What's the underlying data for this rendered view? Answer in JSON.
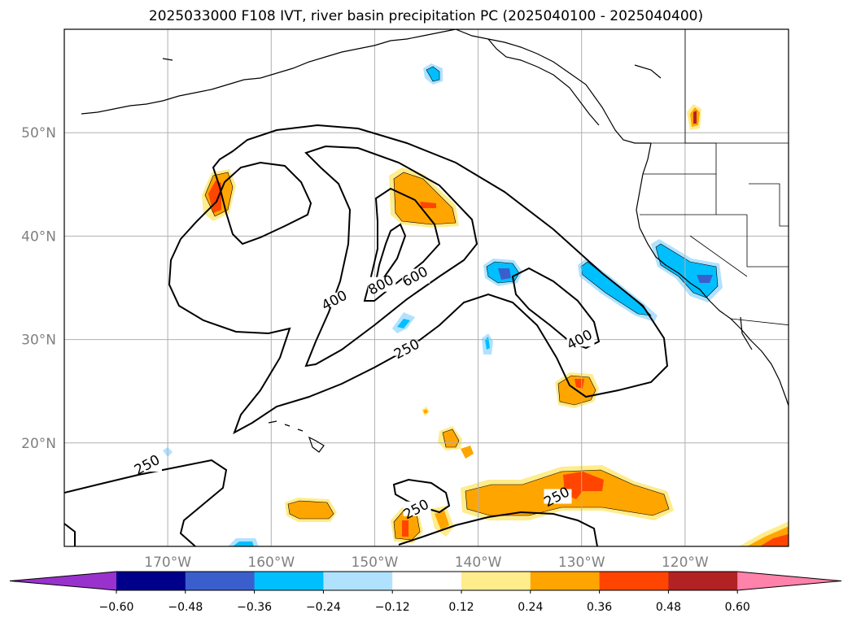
{
  "title": "2025033000 F108 IVT, river basin precipitation PC (2025040100 - 2025040400)",
  "map": {
    "lon_range": [
      -180,
      -110
    ],
    "lat_range": [
      10,
      60
    ],
    "lat_ticks": [
      {
        "value": 20,
        "label": "20°N"
      },
      {
        "value": 30,
        "label": "30°N"
      },
      {
        "value": 40,
        "label": "40°N"
      },
      {
        "value": 50,
        "label": "50°N"
      }
    ],
    "lon_ticks": [
      {
        "value": -170,
        "label": "170°W"
      },
      {
        "value": -160,
        "label": "160°W"
      },
      {
        "value": -150,
        "label": "150°W"
      },
      {
        "value": -140,
        "label": "140°W"
      },
      {
        "value": -130,
        "label": "130°W"
      },
      {
        "value": -120,
        "label": "120°W"
      }
    ],
    "grid": true,
    "ivt_contour_labels": [
      {
        "text": "400",
        "lon": -153.8,
        "lat": 33.6
      },
      {
        "text": "800",
        "lon": -149.3,
        "lat": 35.1
      },
      {
        "text": "600",
        "lon": -146.0,
        "lat": 35.9
      },
      {
        "text": "250",
        "lon": -146.8,
        "lat": 28.9
      },
      {
        "text": "400",
        "lon": -130.1,
        "lat": 29.8
      },
      {
        "text": "250",
        "lon": -171.9,
        "lat": 17.7
      },
      {
        "text": "250",
        "lon": -132.3,
        "lat": 14.6
      },
      {
        "text": "250",
        "lon": -145.9,
        "lat": 13.4
      }
    ]
  },
  "colorbar": {
    "tick_labels": [
      "−0.60",
      "−0.48",
      "−0.36",
      "−0.24",
      "−0.12",
      "0.12",
      "0.24",
      "0.36",
      "0.48",
      "0.60"
    ],
    "colors": [
      "#9932cc",
      "#00008b",
      "#3a5fcd",
      "#00bfff",
      "#b0e2ff",
      "#ffffff",
      "#ffec8b",
      "#ffa500",
      "#ff4500",
      "#b22222",
      "#ff82ab"
    ]
  }
}
